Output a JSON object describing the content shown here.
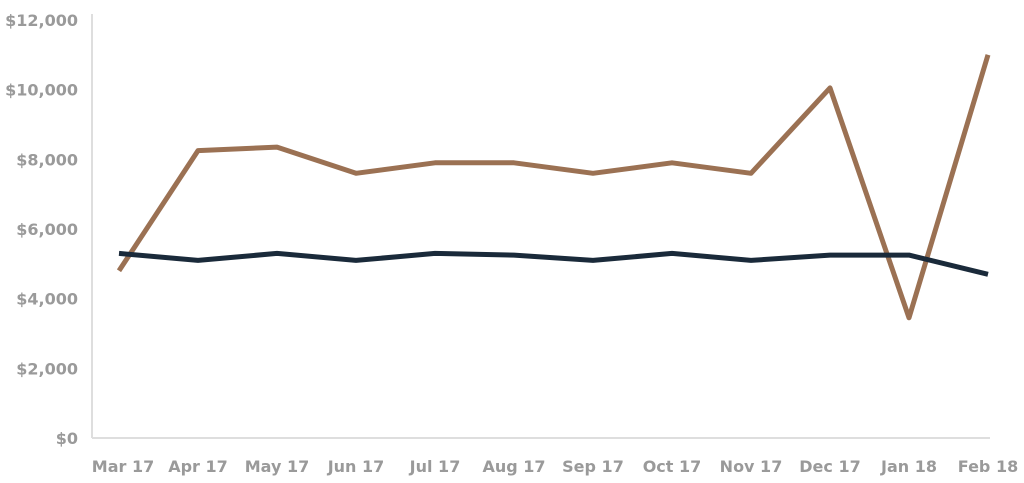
{
  "chart_data": {
    "type": "line",
    "title": "",
    "xlabel": "",
    "ylabel": "",
    "categories": [
      "Mar 17",
      "Apr 17",
      "May 17",
      "Jun 17",
      "Jul 17",
      "Aug 17",
      "Sep 17",
      "Oct 17",
      "Nov 17",
      "Dec 17",
      "Jan 18",
      "Feb 18"
    ],
    "ylim": [
      0,
      12000
    ],
    "y_ticks": [
      0,
      2000,
      4000,
      6000,
      8000,
      10000,
      12000
    ],
    "y_tick_labels": [
      "$0",
      "$2,000",
      "$4,000",
      "$6,000",
      "$8,000",
      "$10,000",
      "$12,000"
    ],
    "grid": false,
    "legend": "none",
    "series": [
      {
        "color": "#9b7153",
        "values": [
          4800,
          8250,
          8350,
          7600,
          7900,
          7900,
          7600,
          7900,
          7600,
          10050,
          3450,
          11000
        ]
      },
      {
        "color": "#1a2a3a",
        "values": [
          5300,
          5100,
          5300,
          5100,
          5300,
          5250,
          5100,
          5300,
          5100,
          5250,
          5250,
          4700
        ]
      }
    ]
  }
}
